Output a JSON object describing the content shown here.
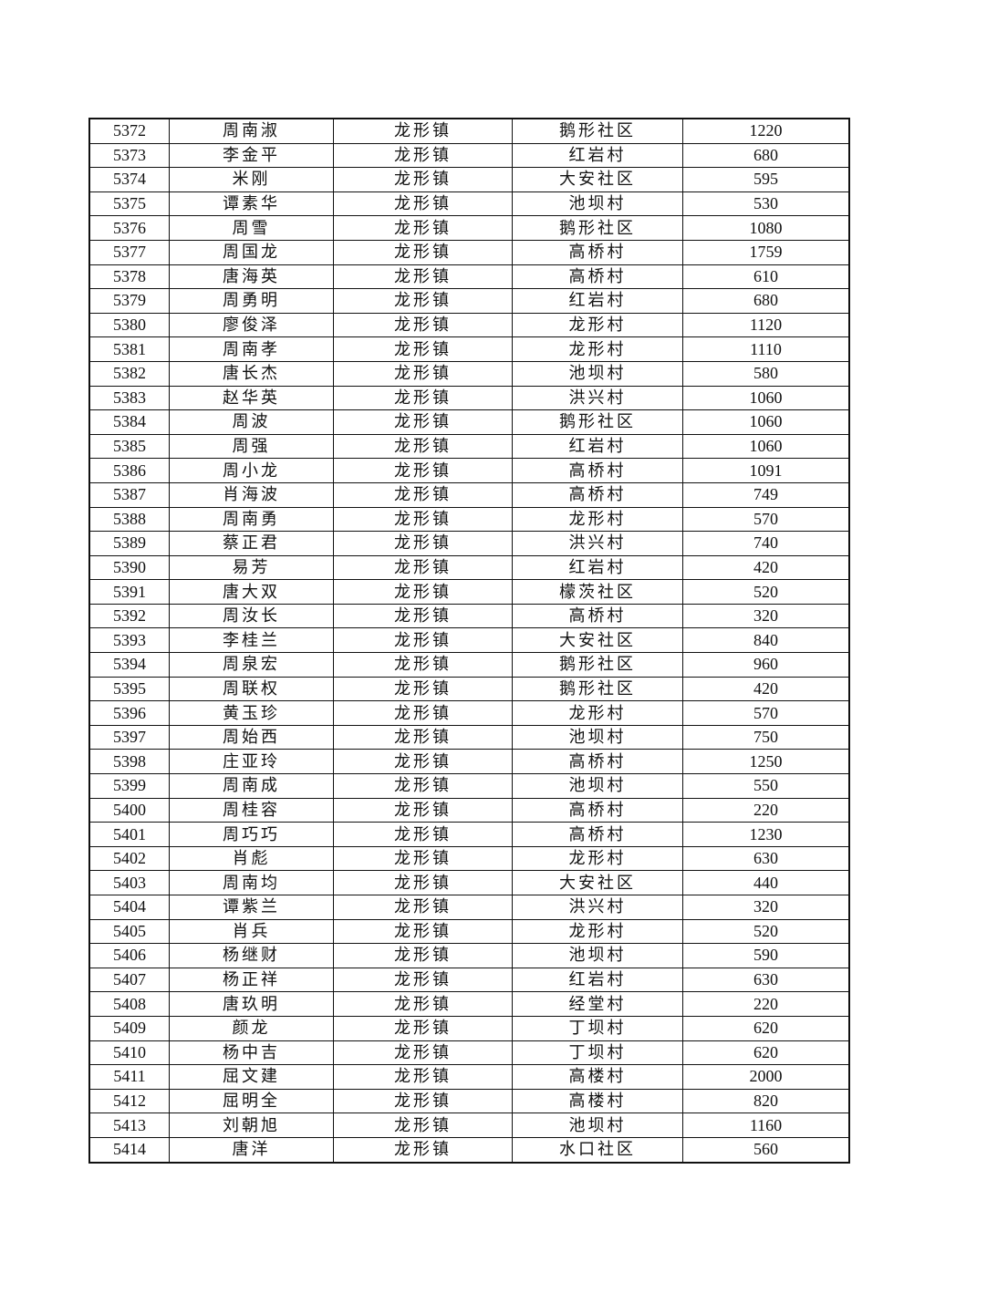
{
  "rows": [
    [
      "5372",
      "周南淑",
      "龙形镇",
      "鹅形社区",
      "1220"
    ],
    [
      "5373",
      "李金平",
      "龙形镇",
      "红岩村",
      "680"
    ],
    [
      "5374",
      "米刚",
      "龙形镇",
      "大安社区",
      "595"
    ],
    [
      "5375",
      "谭素华",
      "龙形镇",
      "池坝村",
      "530"
    ],
    [
      "5376",
      "周雪",
      "龙形镇",
      "鹅形社区",
      "1080"
    ],
    [
      "5377",
      "周国龙",
      "龙形镇",
      "高桥村",
      "1759"
    ],
    [
      "5378",
      "唐海英",
      "龙形镇",
      "高桥村",
      "610"
    ],
    [
      "5379",
      "周勇明",
      "龙形镇",
      "红岩村",
      "680"
    ],
    [
      "5380",
      "廖俊泽",
      "龙形镇",
      "龙形村",
      "1120"
    ],
    [
      "5381",
      "周南孝",
      "龙形镇",
      "龙形村",
      "1110"
    ],
    [
      "5382",
      "唐长杰",
      "龙形镇",
      "池坝村",
      "580"
    ],
    [
      "5383",
      "赵华英",
      "龙形镇",
      "洪兴村",
      "1060"
    ],
    [
      "5384",
      "周波",
      "龙形镇",
      "鹅形社区",
      "1060"
    ],
    [
      "5385",
      "周强",
      "龙形镇",
      "红岩村",
      "1060"
    ],
    [
      "5386",
      "周小龙",
      "龙形镇",
      "高桥村",
      "1091"
    ],
    [
      "5387",
      "肖海波",
      "龙形镇",
      "高桥村",
      "749"
    ],
    [
      "5388",
      "周南勇",
      "龙形镇",
      "龙形村",
      "570"
    ],
    [
      "5389",
      "蔡正君",
      "龙形镇",
      "洪兴村",
      "740"
    ],
    [
      "5390",
      "易芳",
      "龙形镇",
      "红岩村",
      "420"
    ],
    [
      "5391",
      "唐大双",
      "龙形镇",
      "檬茨社区",
      "520"
    ],
    [
      "5392",
      "周汝长",
      "龙形镇",
      "高桥村",
      "320"
    ],
    [
      "5393",
      "李桂兰",
      "龙形镇",
      "大安社区",
      "840"
    ],
    [
      "5394",
      "周泉宏",
      "龙形镇",
      "鹅形社区",
      "960"
    ],
    [
      "5395",
      "周联权",
      "龙形镇",
      "鹅形社区",
      "420"
    ],
    [
      "5396",
      "黄玉珍",
      "龙形镇",
      "龙形村",
      "570"
    ],
    [
      "5397",
      "周始西",
      "龙形镇",
      "池坝村",
      "750"
    ],
    [
      "5398",
      "庄亚玲",
      "龙形镇",
      "高桥村",
      "1250"
    ],
    [
      "5399",
      "周南成",
      "龙形镇",
      "池坝村",
      "550"
    ],
    [
      "5400",
      "周桂容",
      "龙形镇",
      "高桥村",
      "220"
    ],
    [
      "5401",
      "周巧巧",
      "龙形镇",
      "高桥村",
      "1230"
    ],
    [
      "5402",
      "肖彪",
      "龙形镇",
      "龙形村",
      "630"
    ],
    [
      "5403",
      "周南均",
      "龙形镇",
      "大安社区",
      "440"
    ],
    [
      "5404",
      "谭紫兰",
      "龙形镇",
      "洪兴村",
      "320"
    ],
    [
      "5405",
      "肖兵",
      "龙形镇",
      "龙形村",
      "520"
    ],
    [
      "5406",
      "杨继财",
      "龙形镇",
      "池坝村",
      "590"
    ],
    [
      "5407",
      "杨正祥",
      "龙形镇",
      "红岩村",
      "630"
    ],
    [
      "5408",
      "唐玖明",
      "龙形镇",
      "经堂村",
      "220"
    ],
    [
      "5409",
      "颜龙",
      "龙形镇",
      "丁坝村",
      "620"
    ],
    [
      "5410",
      "杨中吉",
      "龙形镇",
      "丁坝村",
      "620"
    ],
    [
      "5411",
      "屈文建",
      "龙形镇",
      "高楼村",
      "2000"
    ],
    [
      "5412",
      "屈明全",
      "龙形镇",
      "高楼村",
      "820"
    ],
    [
      "5413",
      "刘朝旭",
      "龙形镇",
      "池坝村",
      "1160"
    ],
    [
      "5414",
      "唐洋",
      "龙形镇",
      "水口社区",
      "560"
    ]
  ]
}
